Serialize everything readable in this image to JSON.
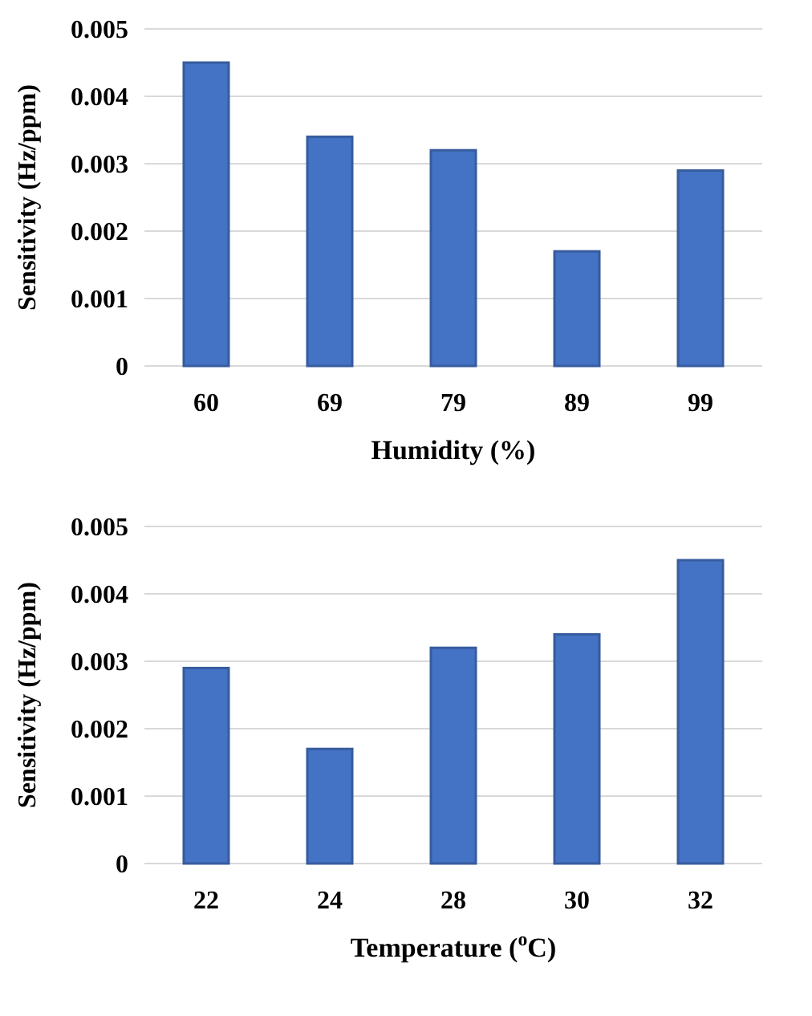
{
  "chart_data": [
    {
      "type": "bar",
      "xlabel": "Humidity (%)",
      "ylabel": "Sensitivity (Hz/ppm)",
      "categories": [
        "60",
        "69",
        "79",
        "89",
        "99"
      ],
      "values": [
        0.0045,
        0.0034,
        0.0032,
        0.0017,
        0.0029
      ],
      "color": "#4472c4",
      "ylim": [
        0,
        0.005
      ],
      "yticks": [
        {
          "value": 0,
          "label": "0"
        },
        0.001,
        0.002,
        0.003,
        0.004,
        0.005
      ],
      "grid": "y"
    },
    {
      "type": "bar",
      "xlabel": "Temperature ($^{o}$C)",
      "ylabel": "Sensitivity (Hz/ppm)",
      "categories": [
        "22",
        "24",
        "28",
        "30",
        "32"
      ],
      "values": [
        0.0029,
        0.0017,
        0.0032,
        0.0034,
        0.0045
      ],
      "color": "#4472c4",
      "ylim": [
        0,
        0.005
      ],
      "yticks": [
        {
          "value": 0,
          "label": "0"
        },
        0.001,
        0.002,
        0.003,
        0.004,
        0.005
      ],
      "grid": "y"
    }
  ]
}
